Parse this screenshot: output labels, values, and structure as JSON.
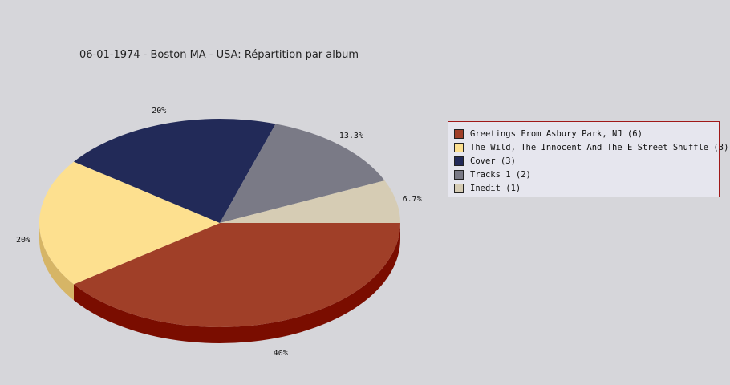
{
  "chart_data": {
    "type": "pie",
    "title": "06-01-1974 - Boston MA - USA:  Répartition par album",
    "slices": [
      {
        "label": "Greetings From Asbury Park, NJ (6)",
        "value": 6,
        "percent_label": "40%",
        "color": "#a03f28",
        "side_color": "#7a0d00"
      },
      {
        "label": "The Wild, The Innocent And The E Street Shuffle (3)",
        "value": 3,
        "percent_label": "20%",
        "color": "#fde08f",
        "side_color": "#d6b566"
      },
      {
        "label": "Cover (3)",
        "value": 3,
        "percent_label": "20%",
        "color": "#222a58",
        "side_color": "#141a3c"
      },
      {
        "label": "Tracks 1 (2)",
        "value": 2,
        "percent_label": "13.3%",
        "color": "#7a7a86",
        "side_color": "#55555e"
      },
      {
        "label": "Inedit (1)",
        "value": 1,
        "percent_label": "6.7%",
        "color": "#d6ccb4",
        "side_color": "#b0a68e"
      }
    ],
    "legend_position": "right"
  }
}
